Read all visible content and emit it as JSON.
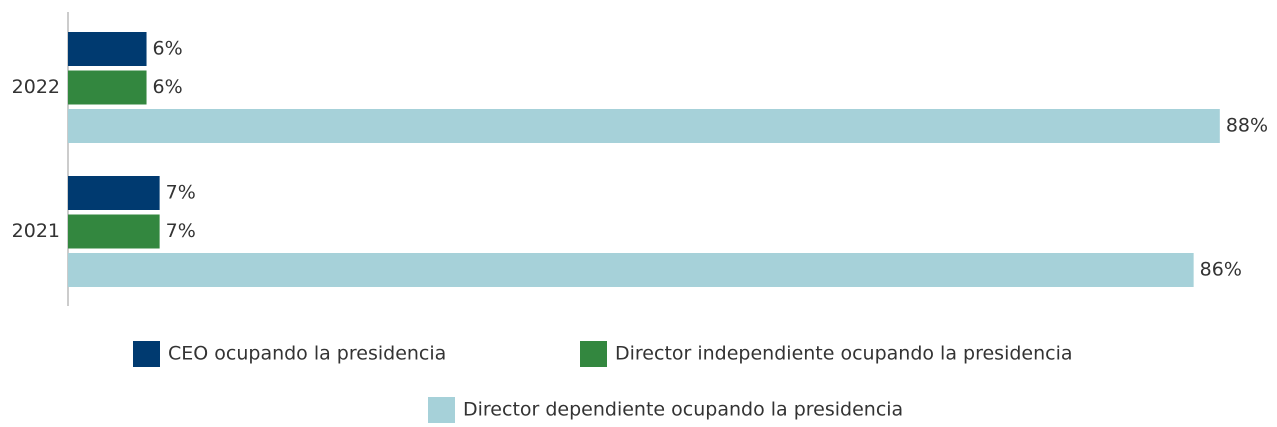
{
  "chart_data": {
    "type": "bar",
    "orientation": "horizontal",
    "categories": [
      "2022",
      "2021"
    ],
    "series": [
      {
        "name": "CEO ocupando la presidencia",
        "color": "#003a70",
        "values": [
          6,
          7
        ],
        "value_labels": [
          "6%",
          "7%"
        ]
      },
      {
        "name": "Director independiente ocupando la presidencia",
        "color": "#33873f",
        "values": [
          6,
          7
        ],
        "value_labels": [
          "6%",
          "7%"
        ]
      },
      {
        "name": "Director dependiente ocupando la presidencia",
        "color": "#a6d1d9",
        "values": [
          88,
          86
        ],
        "value_labels": [
          "88%",
          "86%"
        ]
      }
    ],
    "xlim": [
      0,
      90
    ]
  }
}
